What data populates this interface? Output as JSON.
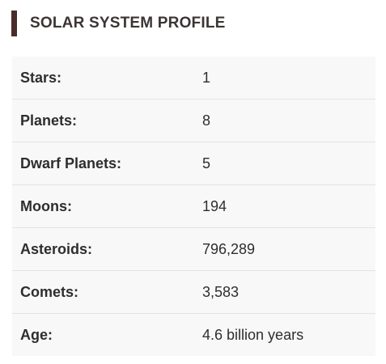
{
  "profile": {
    "title": "SOLAR SYSTEM PROFILE",
    "rows": [
      {
        "label": "Stars:",
        "value": "1"
      },
      {
        "label": "Planets:",
        "value": "8"
      },
      {
        "label": "Dwarf Planets:",
        "value": "5"
      },
      {
        "label": "Moons:",
        "value": "194"
      },
      {
        "label": "Asteroids:",
        "value": "796,289"
      },
      {
        "label": "Comets:",
        "value": "3,583"
      },
      {
        "label": "Age:",
        "value": "4.6 billion years"
      }
    ]
  },
  "colors": {
    "accent_bar": "#4a2c2a",
    "table_background": "#f8f8f8",
    "row_divider": "#e3e3e3"
  }
}
